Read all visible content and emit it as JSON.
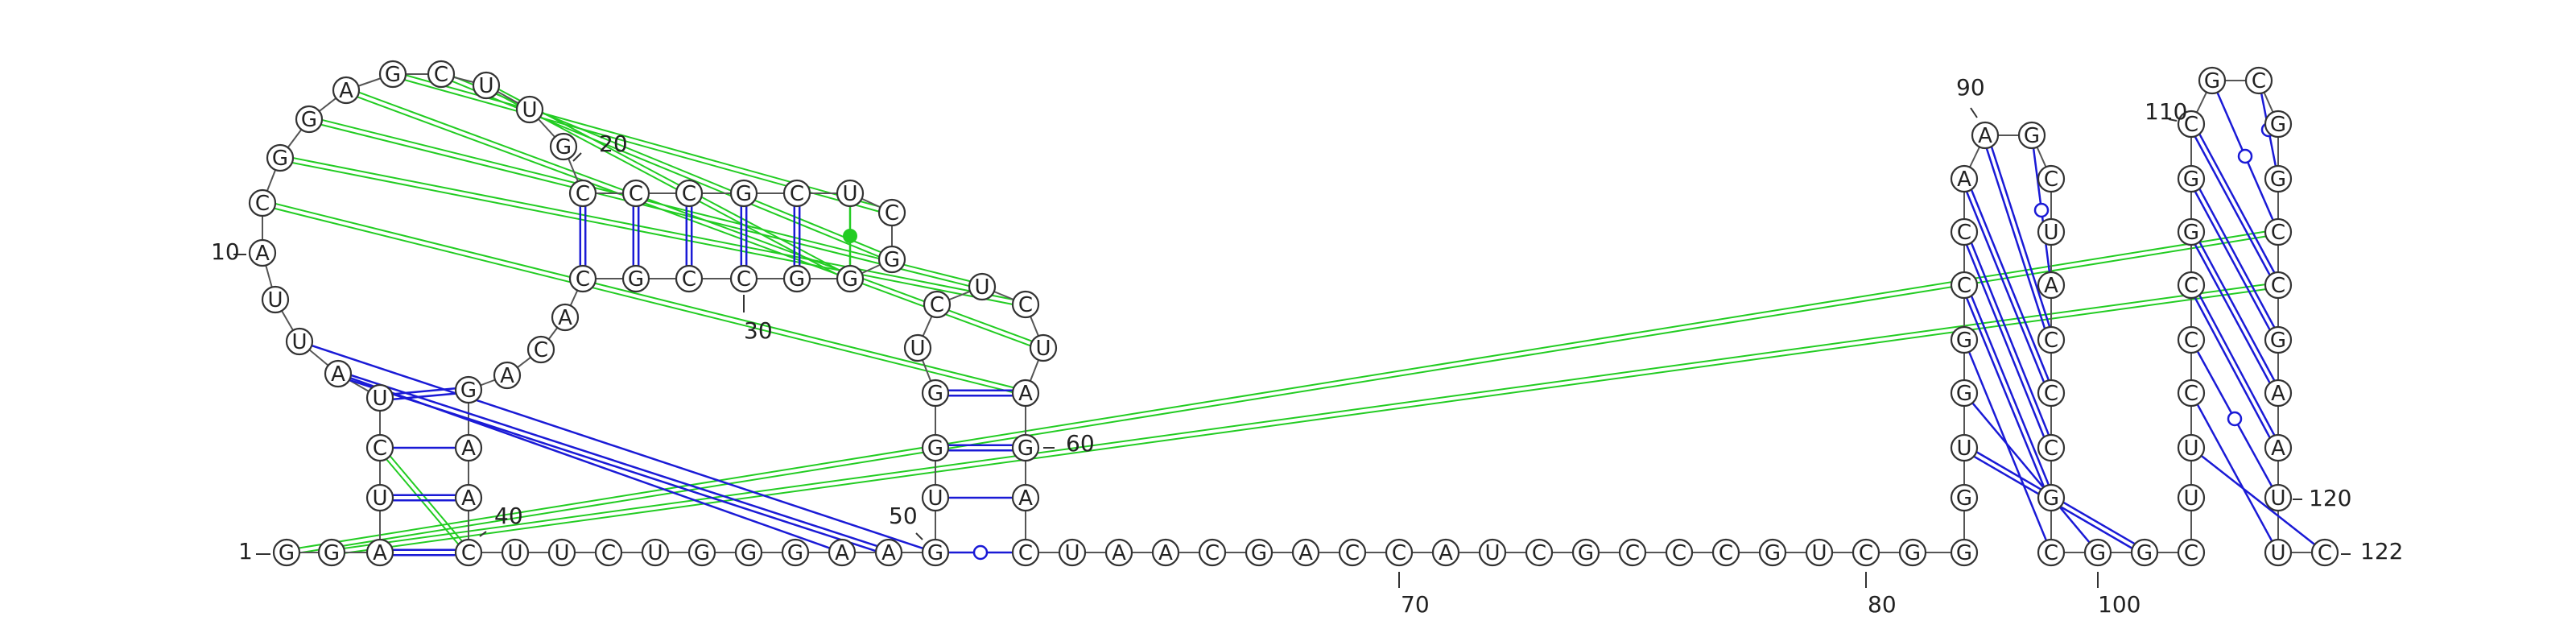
{
  "diagram": {
    "type": "rna-secondary-structure",
    "sequence": "GGAUCUAUUACGGAGCUUGCCCGCUCGGGCCGCACAGAACUUCUGGGAAGUGGUCUCUAGACUAACGACCAUCGCCCGUCGGGUGGCCAAGCUACCCGCGGCUUCCCGGCGCGGCCGAAUUC",
    "colors": {
      "canonical_pair": "#1a1ad6",
      "noncanonical_pair": "#1a1ad6",
      "tertiary": "#22cc22",
      "backbone": "#555555",
      "circle_stroke": "#333333"
    },
    "position_labels": [
      {
        "text": "1",
        "nuc": 1
      },
      {
        "text": "10",
        "nuc": 10
      },
      {
        "text": "20",
        "nuc": 20
      },
      {
        "text": "30",
        "nuc": 30
      },
      {
        "text": "40",
        "nuc": 40
      },
      {
        "text": "50",
        "nuc": 50
      },
      {
        "text": "60",
        "nuc": 60
      },
      {
        "text": "70",
        "nuc": 70
      },
      {
        "text": "80",
        "nuc": 80
      },
      {
        "text": "90",
        "nuc": 90
      },
      {
        "text": "100",
        "nuc": 100
      },
      {
        "text": "110",
        "nuc": 110
      },
      {
        "text": "120",
        "nuc": 120
      },
      {
        "text": "122",
        "nuc": 122
      }
    ],
    "pairs": [
      {
        "i": 3,
        "j": 42,
        "kind": "canonical"
      },
      {
        "i": 4,
        "j": 41,
        "kind": "canonical"
      },
      {
        "i": 5,
        "j": 40,
        "kind": "canonical"
      },
      {
        "i": 6,
        "j": 39,
        "kind": "canonical"
      },
      {
        "i": 22,
        "j": 34,
        "kind": "canonical"
      },
      {
        "i": 23,
        "j": 33,
        "kind": "canonical"
      },
      {
        "i": 24,
        "j": 32,
        "kind": "canonical"
      },
      {
        "i": 25,
        "j": 31,
        "kind": "canonical"
      },
      {
        "i": 26,
        "j": 30,
        "kind": "canonical"
      },
      {
        "i": 27,
        "j": 29,
        "kind": "tertiary-dot"
      },
      {
        "i": 50,
        "j": 52,
        "kind": "noncanonical"
      },
      {
        "i": 49,
        "j": 60,
        "kind": "canonical"
      },
      {
        "i": 48,
        "j": 59,
        "kind": "canonical"
      },
      {
        "i": 47,
        "j": 58,
        "kind": "canonical"
      },
      {
        "i": 46,
        "j": 57,
        "kind": "canonical"
      },
      {
        "i": 84,
        "j": 98,
        "kind": "canonical"
      },
      {
        "i": 85,
        "j": 97,
        "kind": "canonical"
      },
      {
        "i": 86,
        "j": 96,
        "kind": "canonical"
      },
      {
        "i": 87,
        "j": 95,
        "kind": "canonical"
      },
      {
        "i": 88,
        "j": 94,
        "kind": "canonical"
      },
      {
        "i": 89,
        "j": 93,
        "kind": "canonical"
      },
      {
        "i": 90,
        "j": 92,
        "kind": "noncanonical"
      },
      {
        "i": 101,
        "j": 120,
        "kind": "canonical"
      },
      {
        "i": 102,
        "j": 119,
        "kind": "canonical"
      },
      {
        "i": 103,
        "j": 118,
        "kind": "noncanonical"
      },
      {
        "i": 104,
        "j": 117,
        "kind": "canonical"
      },
      {
        "i": 105,
        "j": 116,
        "kind": "canonical"
      },
      {
        "i": 106,
        "j": 115,
        "kind": "canonical"
      },
      {
        "i": 107,
        "j": 114,
        "kind": "noncanonical"
      },
      {
        "i": 108,
        "j": 113,
        "kind": "canonical"
      },
      {
        "i": 109,
        "j": 112,
        "kind": "noncanonical"
      },
      {
        "i": 14,
        "j": 44,
        "kind": "canonical"
      },
      {
        "i": 15,
        "j": 45,
        "kind": "canonical"
      },
      {
        "i": 15,
        "j": 46,
        "kind": "canonical"
      },
      {
        "i": 16,
        "j": 63,
        "kind": "tertiary"
      },
      {
        "i": 17,
        "j": 62,
        "kind": "tertiary"
      },
      {
        "i": 18,
        "j": 61,
        "kind": "tertiary"
      },
      {
        "i": 11,
        "j": 58,
        "kind": "tertiary"
      },
      {
        "i": 41,
        "j": 59,
        "kind": "tertiary"
      },
      {
        "i": 2,
        "j": 117,
        "kind": "tertiary"
      },
      {
        "i": 1,
        "j": 116,
        "kind": "tertiary"
      }
    ]
  }
}
